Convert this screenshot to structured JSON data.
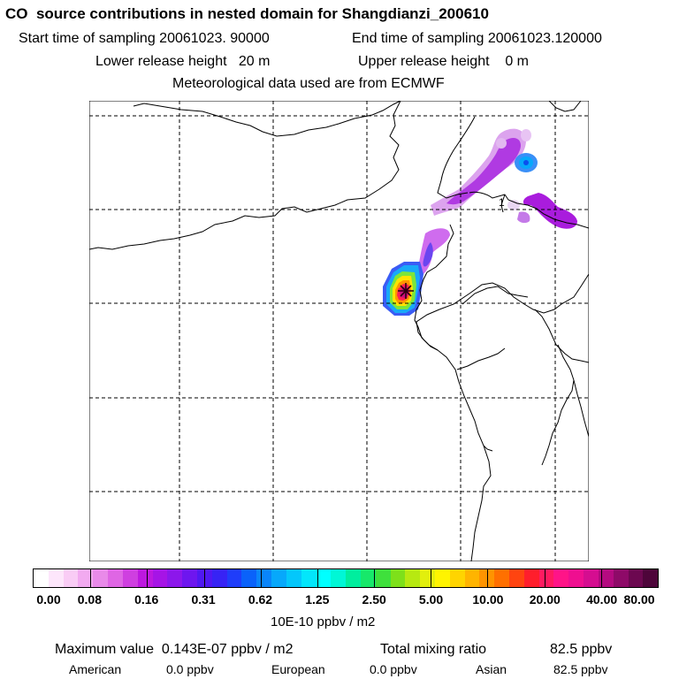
{
  "header": {
    "title": "CO  source contributions in nested domain for Shangdianzi_200610",
    "start_label": "Start time of sampling 20061023. 90000",
    "end_label": "End time of sampling 20061023.120000",
    "lower_label": "Lower release height   20 m",
    "upper_label": "Upper release height    0 m",
    "met_label": "Meteorological data used are from ECMWF"
  },
  "colorbar": {
    "colors": [
      "#ffffff",
      "#fde6fb",
      "#f9ccf5",
      "#f2aaf0",
      "#e98ae9",
      "#df66e4",
      "#cf3fe0",
      "#bd18df",
      "#a614e6",
      "#8c17eb",
      "#6e16ef",
      "#5018f2",
      "#3723f5",
      "#1f3dfa",
      "#0a62fa",
      "#0a85fa",
      "#07a8fb",
      "#04c7fb",
      "#03e6fb",
      "#00ffff",
      "#00f7d6",
      "#00ee9e",
      "#17e86a",
      "#3fe03c",
      "#7ee01a",
      "#b7e911",
      "#e2ef0d",
      "#fff400",
      "#ffd400",
      "#ffb400",
      "#ff9400",
      "#ff7000",
      "#ff4410",
      "#ff1e2c",
      "#ff1a60",
      "#ff1488",
      "#ef0f90",
      "#d50d90",
      "#b40a80",
      "#8e0a68",
      "#6c0850",
      "#4e053a"
    ],
    "tick_labels": [
      "0.00",
      "0.08",
      "0.16",
      "0.31",
      "0.62",
      "1.25",
      "2.50",
      "5.00",
      "10.00",
      "20.00",
      "40.00",
      "80.00"
    ],
    "units": "10E-10 ppbv / m2"
  },
  "footer": {
    "max_label": "Maximum value  0.143E-07 ppbv / m2",
    "total_label": "Total mixing ratio",
    "total_value": "82.5 ppbv",
    "american_label": "American",
    "american_value": "0.0 ppbv",
    "european_label": "European",
    "european_value": "0.0 ppbv",
    "asian_label": "Asian",
    "asian_value": "82.5 ppbv"
  },
  "map": {
    "receptor_marker_color": "#2a0010",
    "small_marker_label": "1"
  }
}
